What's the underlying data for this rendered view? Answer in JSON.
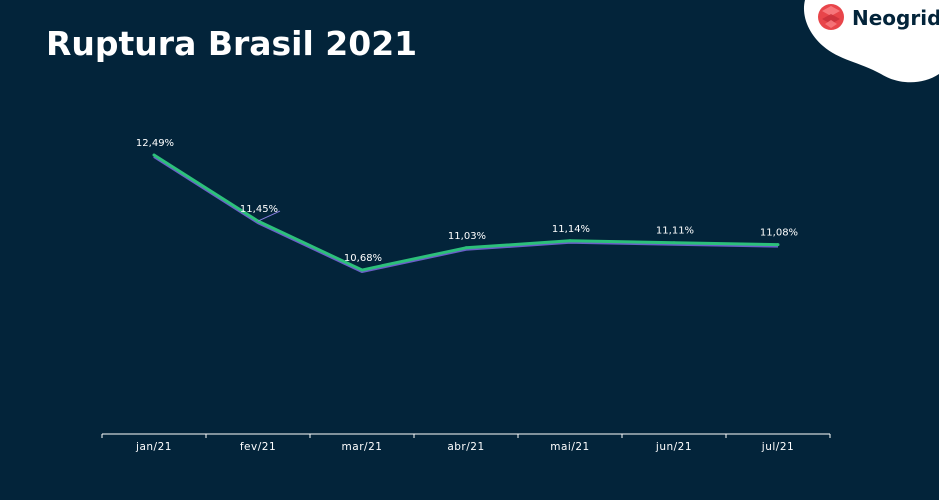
{
  "title": "Ruptura Brasil 2021",
  "logo": {
    "text": "Neogrid",
    "color": "#e8454a"
  },
  "colors": {
    "background": "#03243a",
    "line": "#2cc07a",
    "line_shadow": "#6a5fc8",
    "droplines": "#ffffff"
  },
  "chart_data": {
    "type": "line",
    "categories": [
      "jan/21",
      "fev/21",
      "mar/21",
      "abr/21",
      "mai/21",
      "jun/21",
      "jul/21"
    ],
    "values": [
      12.49,
      11.45,
      10.68,
      11.03,
      11.14,
      11.11,
      11.08
    ],
    "labels": [
      "12,49%",
      "11,45%",
      "10,68%",
      "11,03%",
      "11,14%",
      "11,11%",
      "11,08%"
    ],
    "title": "Ruptura Brasil 2021",
    "xlabel": "",
    "ylabel": "",
    "ylim": [
      8.1,
      12.49
    ],
    "grid": false,
    "legend": "none"
  }
}
